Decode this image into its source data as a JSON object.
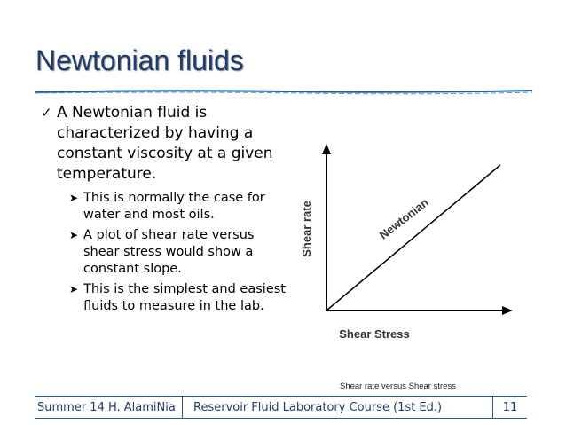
{
  "slide": {
    "title": "Newtonian fluids",
    "main_bullet": "A Newtonian fluid is characterized by having a constant viscosity at a given temperature.",
    "sub_bullets": [
      "This is normally the case for water and most oils.",
      "A plot of shear rate versus shear stress would show a constant slope.",
      "This is the simplest and easiest fluids to measure in the lab."
    ],
    "caption": "Shear rate versus Shear stress"
  },
  "figure": {
    "ylabel": "Shear rate",
    "xlabel": "Shear Stress",
    "line_label": "Newtonian"
  },
  "footer": {
    "left": "Summer 14 H. AlamiNia",
    "middle": "Reservoir Fluid Laboratory Course (1st Ed.)",
    "page": "11"
  },
  "colors": {
    "title": "#1f3b73",
    "rule": "#1f5fa0",
    "footer_border": "#1f5fa0"
  },
  "icons": {
    "main_bullet": "checkmark-icon",
    "sub_bullet": "arrowhead-icon"
  }
}
